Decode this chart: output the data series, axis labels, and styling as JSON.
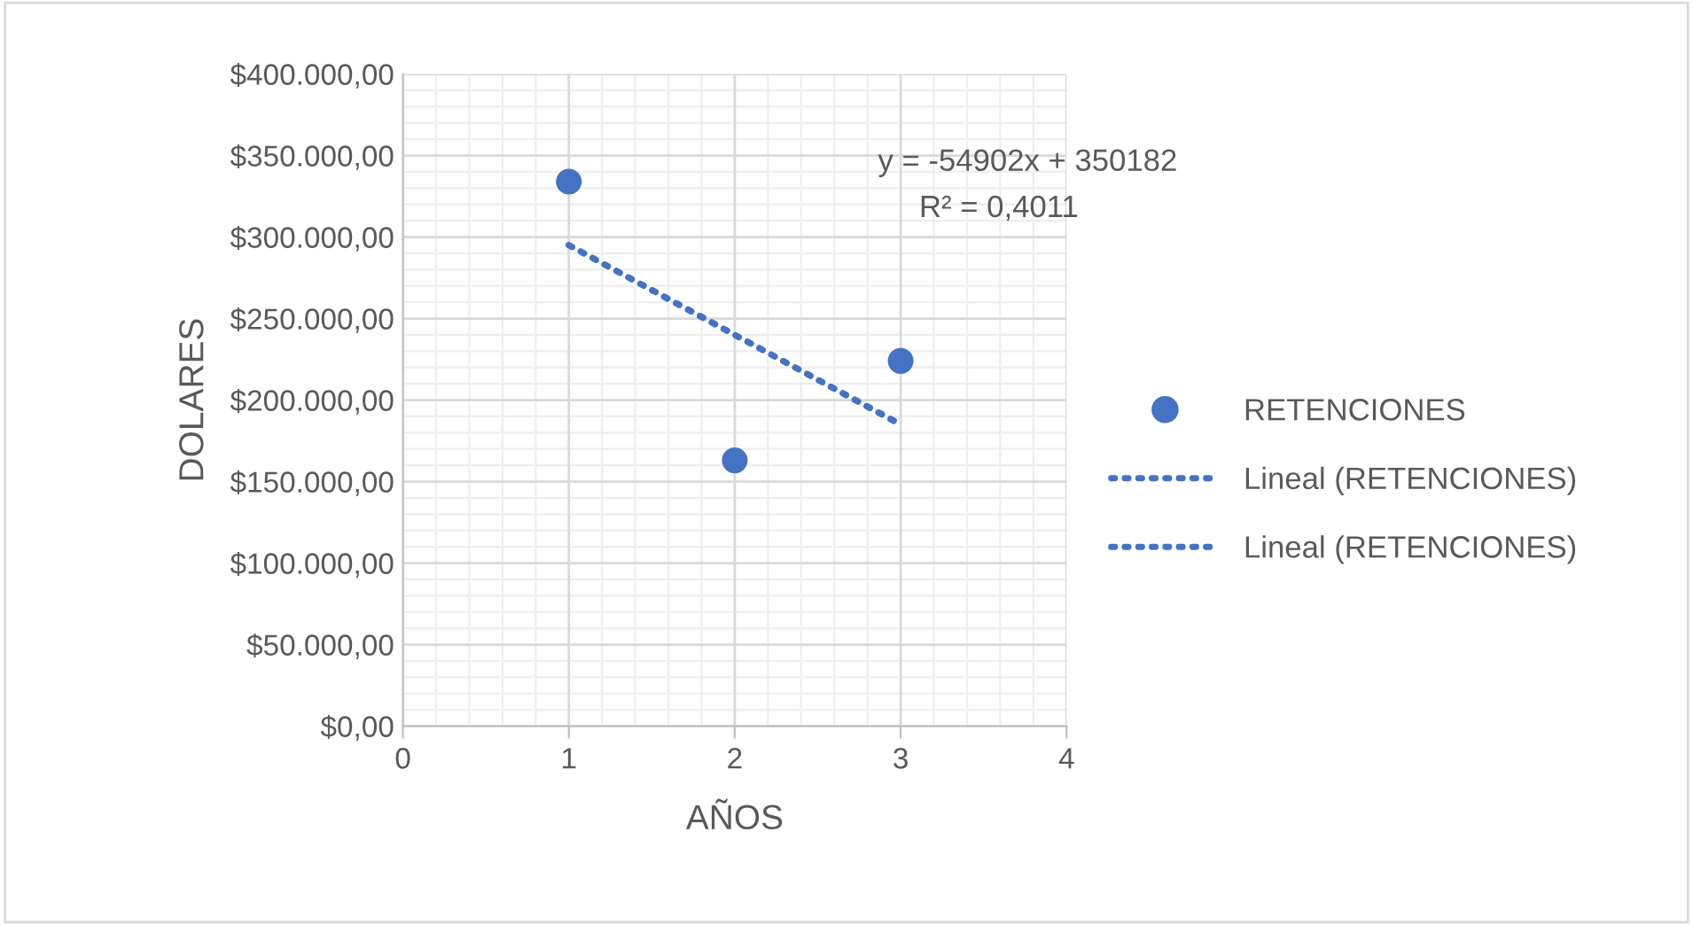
{
  "chart_data": {
    "type": "scatter",
    "xlabel": "AÑOS",
    "ylabel": "DOLARES",
    "xlim": [
      0,
      4
    ],
    "xticks": [
      0,
      1,
      2,
      3,
      4
    ],
    "ylim": [
      0,
      400000
    ],
    "yticks": [
      {
        "value": 0,
        "label": "$0,00"
      },
      {
        "value": 50000,
        "label": "$50.000,00"
      },
      {
        "value": 100000,
        "label": "$100.000,00"
      },
      {
        "value": 150000,
        "label": "$150.000,00"
      },
      {
        "value": 200000,
        "label": "$200.000,00"
      },
      {
        "value": 250000,
        "label": "$250.000,00"
      },
      {
        "value": 300000,
        "label": "$300.000,00"
      },
      {
        "value": 350000,
        "label": "$350.000,00"
      },
      {
        "value": 400000,
        "label": "$400.000,00"
      }
    ],
    "series": [
      {
        "name": "RETENCIONES",
        "color": "#4472c4",
        "marker": "circle",
        "x": [
          1,
          2,
          3
        ],
        "values": [
          334000,
          163000,
          224000
        ]
      },
      {
        "name": "Lineal (RETENCIONES)",
        "type": "line",
        "color": "#4472c4",
        "line_style": "dotted",
        "marker": "none",
        "x": [
          1,
          3
        ],
        "values": [
          295000,
          185000
        ]
      },
      {
        "name": "Lineal (RETENCIONES)",
        "type": "line",
        "color": "#4472c4",
        "line_style": "dotted",
        "marker": "none",
        "x": [
          1,
          3
        ],
        "values": [
          295000,
          185000
        ]
      }
    ],
    "annotations": [
      "y = -54902x + 350182",
      "R² = 0,4011"
    ],
    "grid": true,
    "legend": "right"
  }
}
